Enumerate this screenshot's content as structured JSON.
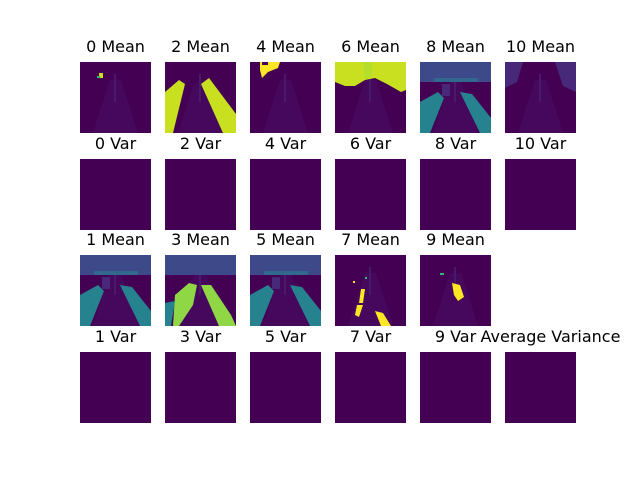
{
  "chart_data": {
    "type": "heatmap",
    "colormap": "viridis",
    "colors": {
      "dark": "#440154",
      "blue_violet": "#3e4989",
      "teal": "#26828e",
      "green": "#35b779",
      "lime": "#8fd744",
      "yellow": "#fde725",
      "yellow_green": "#c8e020"
    },
    "rows": [
      {
        "panels": [
          {
            "title": "0 Mean",
            "kind": "mean",
            "color": "#c8e020",
            "style": "sparse"
          },
          {
            "title": "2 Mean",
            "kind": "mean",
            "color": "#c8e020",
            "style": "road-edges"
          },
          {
            "title": "4 Mean",
            "kind": "mean",
            "color": "#fde725",
            "style": "sky-blob"
          },
          {
            "title": "6 Mean",
            "kind": "mean",
            "color": "#c8e020",
            "style": "sky-large"
          },
          {
            "title": "8 Mean",
            "kind": "mean",
            "color": "#26828e",
            "style": "street-scene"
          },
          {
            "title": "10 Mean",
            "kind": "mean",
            "color": "#3e4989",
            "style": "faint"
          }
        ]
      },
      {
        "panels": [
          {
            "title": "0 Var",
            "kind": "var"
          },
          {
            "title": "2 Var",
            "kind": "var"
          },
          {
            "title": "4 Var",
            "kind": "var"
          },
          {
            "title": "6 Var",
            "kind": "var"
          },
          {
            "title": "8 Var",
            "kind": "var"
          },
          {
            "title": "10 Var",
            "kind": "var"
          }
        ]
      },
      {
        "panels": [
          {
            "title": "1 Mean",
            "kind": "mean",
            "color": "#26828e",
            "style": "street-scene"
          },
          {
            "title": "3 Mean",
            "kind": "mean",
            "color": "#8fd744",
            "style": "road-green"
          },
          {
            "title": "5 Mean",
            "kind": "mean",
            "color": "#26828e",
            "style": "street-scene"
          },
          {
            "title": "7 Mean",
            "kind": "mean",
            "color": "#fde725",
            "style": "lane-marks"
          },
          {
            "title": "9 Mean",
            "kind": "mean",
            "color": "#fde725",
            "style": "small-blob"
          }
        ]
      },
      {
        "panels": [
          {
            "title": "1 Var",
            "kind": "var"
          },
          {
            "title": "3 Var",
            "kind": "var"
          },
          {
            "title": "5 Var",
            "kind": "var"
          },
          {
            "title": "7 Var",
            "kind": "var"
          },
          {
            "title": "9 Var",
            "kind": "var"
          },
          {
            "title": "Average Variance",
            "kind": "var"
          }
        ]
      }
    ]
  }
}
